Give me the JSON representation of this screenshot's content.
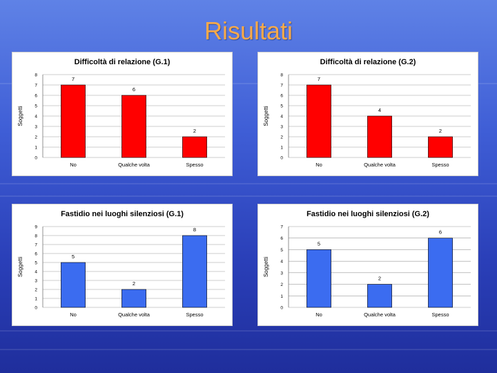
{
  "page": {
    "title": "Risultati"
  },
  "chart_data": [
    {
      "type": "bar",
      "title": "Difficoltà di relazione (G.1)",
      "ylabel": "Soggetti",
      "categories": [
        "No",
        "Qualche volta",
        "Spesso"
      ],
      "values": [
        7,
        6,
        2
      ],
      "value_labels": [
        "7",
        "6",
        "2"
      ],
      "ylim": [
        0,
        8
      ],
      "yticks": [
        0,
        1,
        2,
        3,
        4,
        5,
        6,
        7,
        8
      ],
      "bar_color": "#ff0000",
      "grid": true
    },
    {
      "type": "bar",
      "title": "Difficoltà di relazione (G.2)",
      "ylabel": "Soggetti",
      "categories": [
        "No",
        "Qualche volta",
        "Spesso"
      ],
      "values": [
        7,
        4,
        2
      ],
      "value_labels": [
        "7",
        "4",
        "2"
      ],
      "ylim": [
        0,
        8
      ],
      "yticks": [
        0,
        1,
        2,
        3,
        4,
        5,
        6,
        7,
        8
      ],
      "bar_color": "#ff0000",
      "grid": true
    },
    {
      "type": "bar",
      "title": "Fastidio nei luoghi silenziosi (G.1)",
      "ylabel": "Soggetti",
      "categories": [
        "No",
        "Qualche volta",
        "Spesso"
      ],
      "values": [
        5,
        2,
        8
      ],
      "value_labels": [
        "5",
        "2",
        "8"
      ],
      "ylim": [
        0,
        9
      ],
      "yticks": [
        0,
        1,
        2,
        3,
        4,
        5,
        6,
        7,
        8,
        9
      ],
      "bar_color": "#3b6cf0",
      "grid": true
    },
    {
      "type": "bar",
      "title": "Fastidio nei luoghi silenziosi (G.2)",
      "ylabel": "Soggetti",
      "categories": [
        "No",
        "Qualche volta",
        "Spesso"
      ],
      "values": [
        5,
        2,
        6
      ],
      "value_labels": [
        "5",
        "2",
        "6"
      ],
      "ylim": [
        0,
        7
      ],
      "yticks": [
        0,
        1,
        2,
        3,
        4,
        5,
        6,
        7
      ],
      "bar_color": "#3b6cf0",
      "grid": true
    }
  ]
}
